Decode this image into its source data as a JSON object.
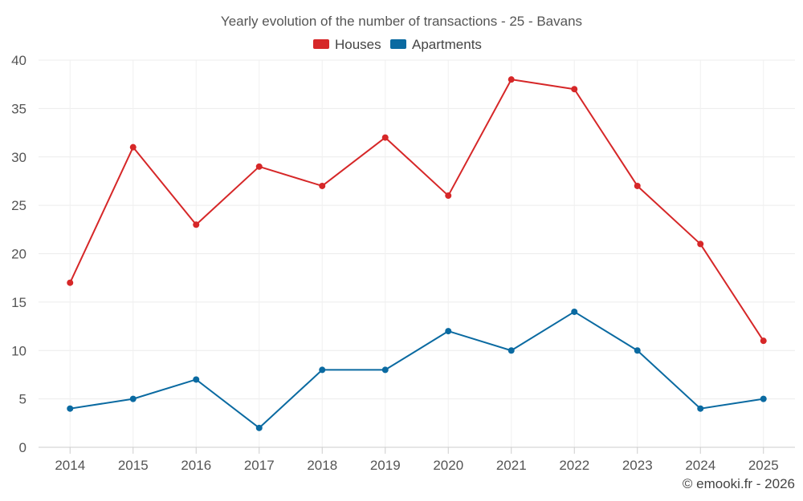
{
  "chart_data": {
    "type": "line",
    "title": "Yearly evolution of the number of transactions - 25 - Bavans",
    "categories": [
      "2014",
      "2015",
      "2016",
      "2017",
      "2018",
      "2019",
      "2020",
      "2021",
      "2022",
      "2023",
      "2024",
      "2025"
    ],
    "series": [
      {
        "name": "Houses",
        "color": "#d62728",
        "values": [
          17,
          31,
          23,
          29,
          27,
          32,
          26,
          38,
          37,
          27,
          21,
          11
        ]
      },
      {
        "name": "Apartments",
        "color": "#0a6aa1",
        "values": [
          4,
          5,
          7,
          2,
          8,
          8,
          12,
          10,
          14,
          10,
          4,
          5
        ]
      }
    ],
    "ylim": [
      0,
      40
    ],
    "yticks": [
      0,
      5,
      10,
      15,
      20,
      25,
      30,
      35,
      40
    ],
    "xlabel": "",
    "ylabel": "",
    "grid": true,
    "legend": "top-center"
  },
  "footer": {
    "credit": "© emooki.fr - 2026"
  }
}
